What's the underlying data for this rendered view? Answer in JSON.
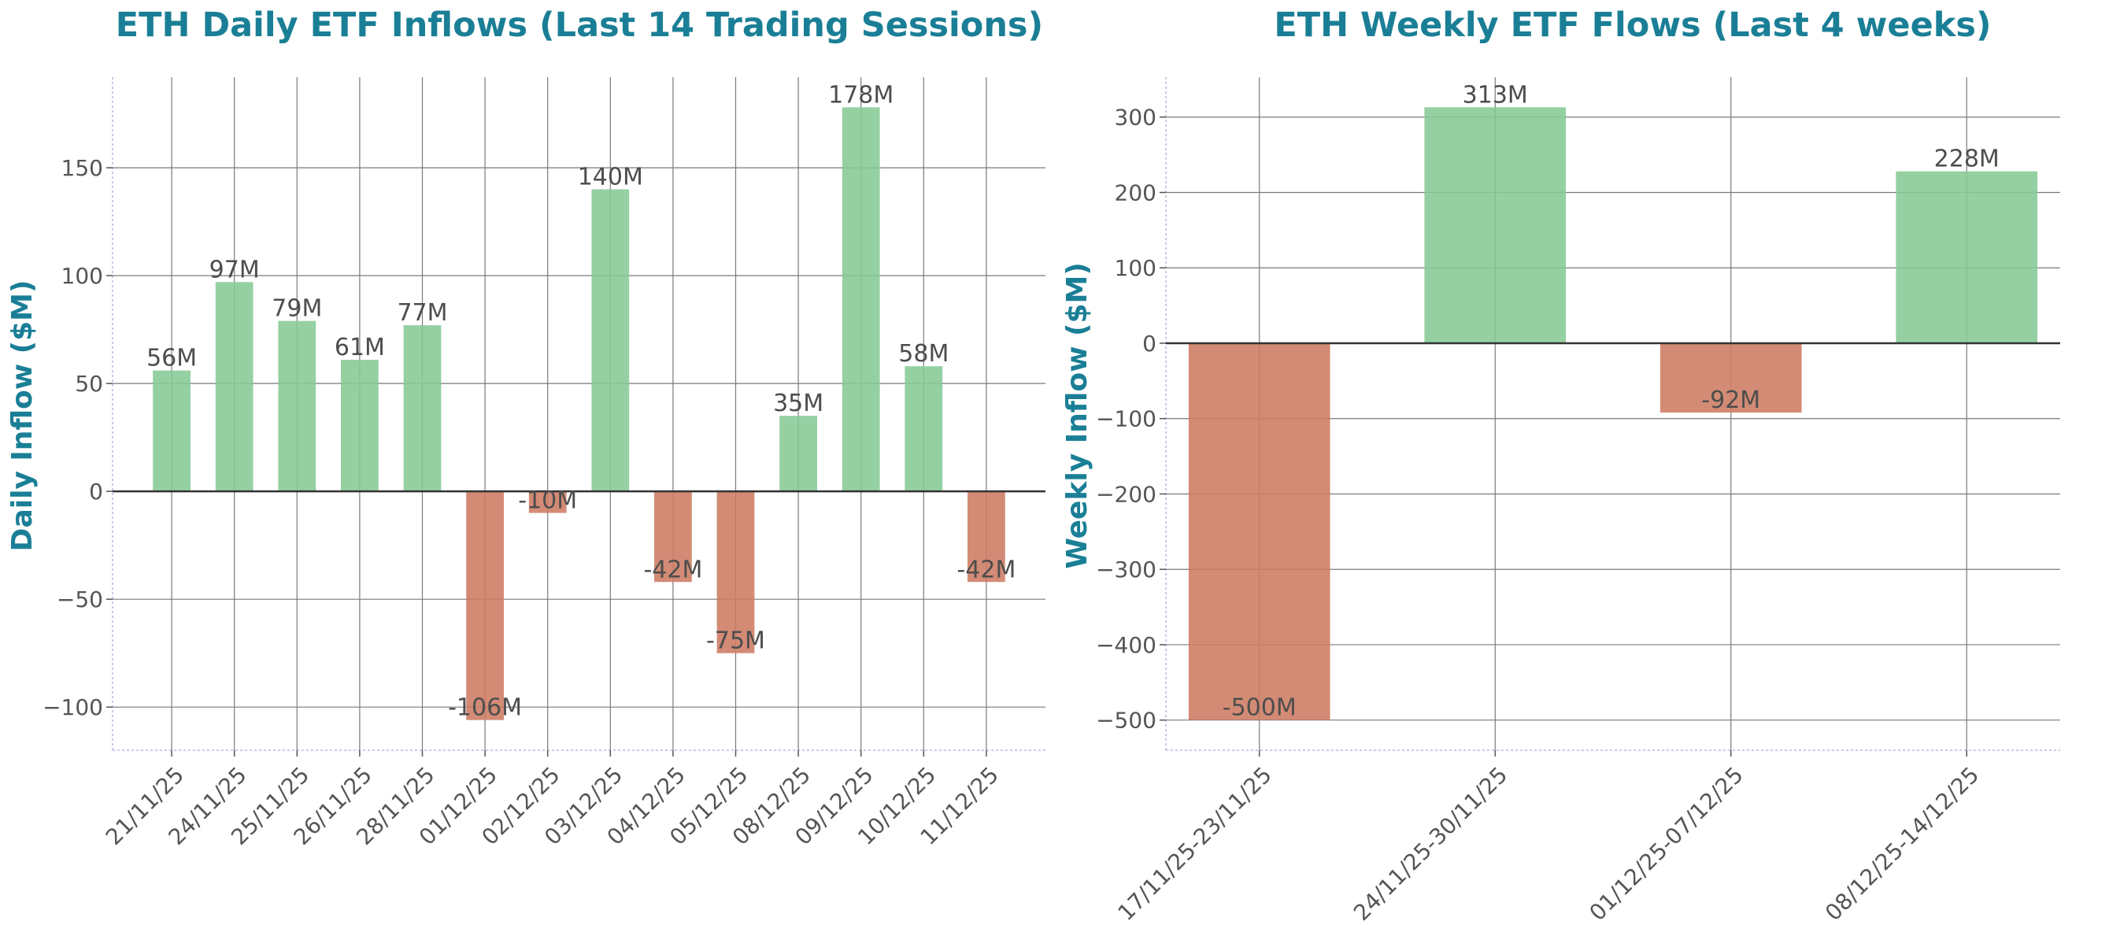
{
  "chart_data": [
    {
      "type": "bar",
      "title": "ETH Daily ETF Inflows (Last 14 Trading Sessions)",
      "xlabel": "",
      "ylabel": "Daily Inflow ($M)",
      "categories": [
        "21/11/25",
        "24/11/25",
        "25/11/25",
        "26/11/25",
        "28/11/25",
        "01/12/25",
        "02/12/25",
        "03/12/25",
        "04/12/25",
        "05/12/25",
        "08/12/25",
        "09/12/25",
        "10/12/25",
        "11/12/25"
      ],
      "values": [
        56,
        97,
        79,
        61,
        77,
        -106,
        -10,
        140,
        -42,
        -75,
        35,
        178,
        58,
        -42
      ],
      "data_labels": [
        "56M",
        "97M",
        "79M",
        "61M",
        "77M",
        "-106M",
        "-10M",
        "140M",
        "-42M",
        "-75M",
        "35M",
        "178M",
        "58M",
        "-42M"
      ],
      "ylim": [
        -120,
        192
      ],
      "yticks": [
        -100,
        -50,
        0,
        50,
        100,
        150
      ],
      "ytick_labels": [
        "−100",
        "−50",
        "0",
        "50",
        "100",
        "150"
      ],
      "grid": true,
      "colors": {
        "positive": "#86c995",
        "negative": "#cd7b62"
      }
    },
    {
      "type": "bar",
      "title": "ETH Weekly ETF Flows (Last 4 weeks)",
      "xlabel": "",
      "ylabel": "Weekly Inflow ($M)",
      "categories": [
        "17/11/25-23/11/25",
        "24/11/25-30/11/25",
        "01/12/25-07/12/25",
        "08/12/25-14/12/25"
      ],
      "values": [
        -500,
        313,
        -92,
        228
      ],
      "data_labels": [
        "-500M",
        "313M",
        "-92M",
        "228M"
      ],
      "ylim": [
        -540,
        353
      ],
      "yticks": [
        -500,
        -400,
        -300,
        -200,
        -100,
        0,
        100,
        200,
        300
      ],
      "ytick_labels": [
        "−500",
        "−400",
        "−300",
        "−200",
        "−100",
        "0",
        "100",
        "200",
        "300"
      ],
      "grid": true,
      "colors": {
        "positive": "#86c995",
        "negative": "#cd7b62"
      }
    }
  ]
}
